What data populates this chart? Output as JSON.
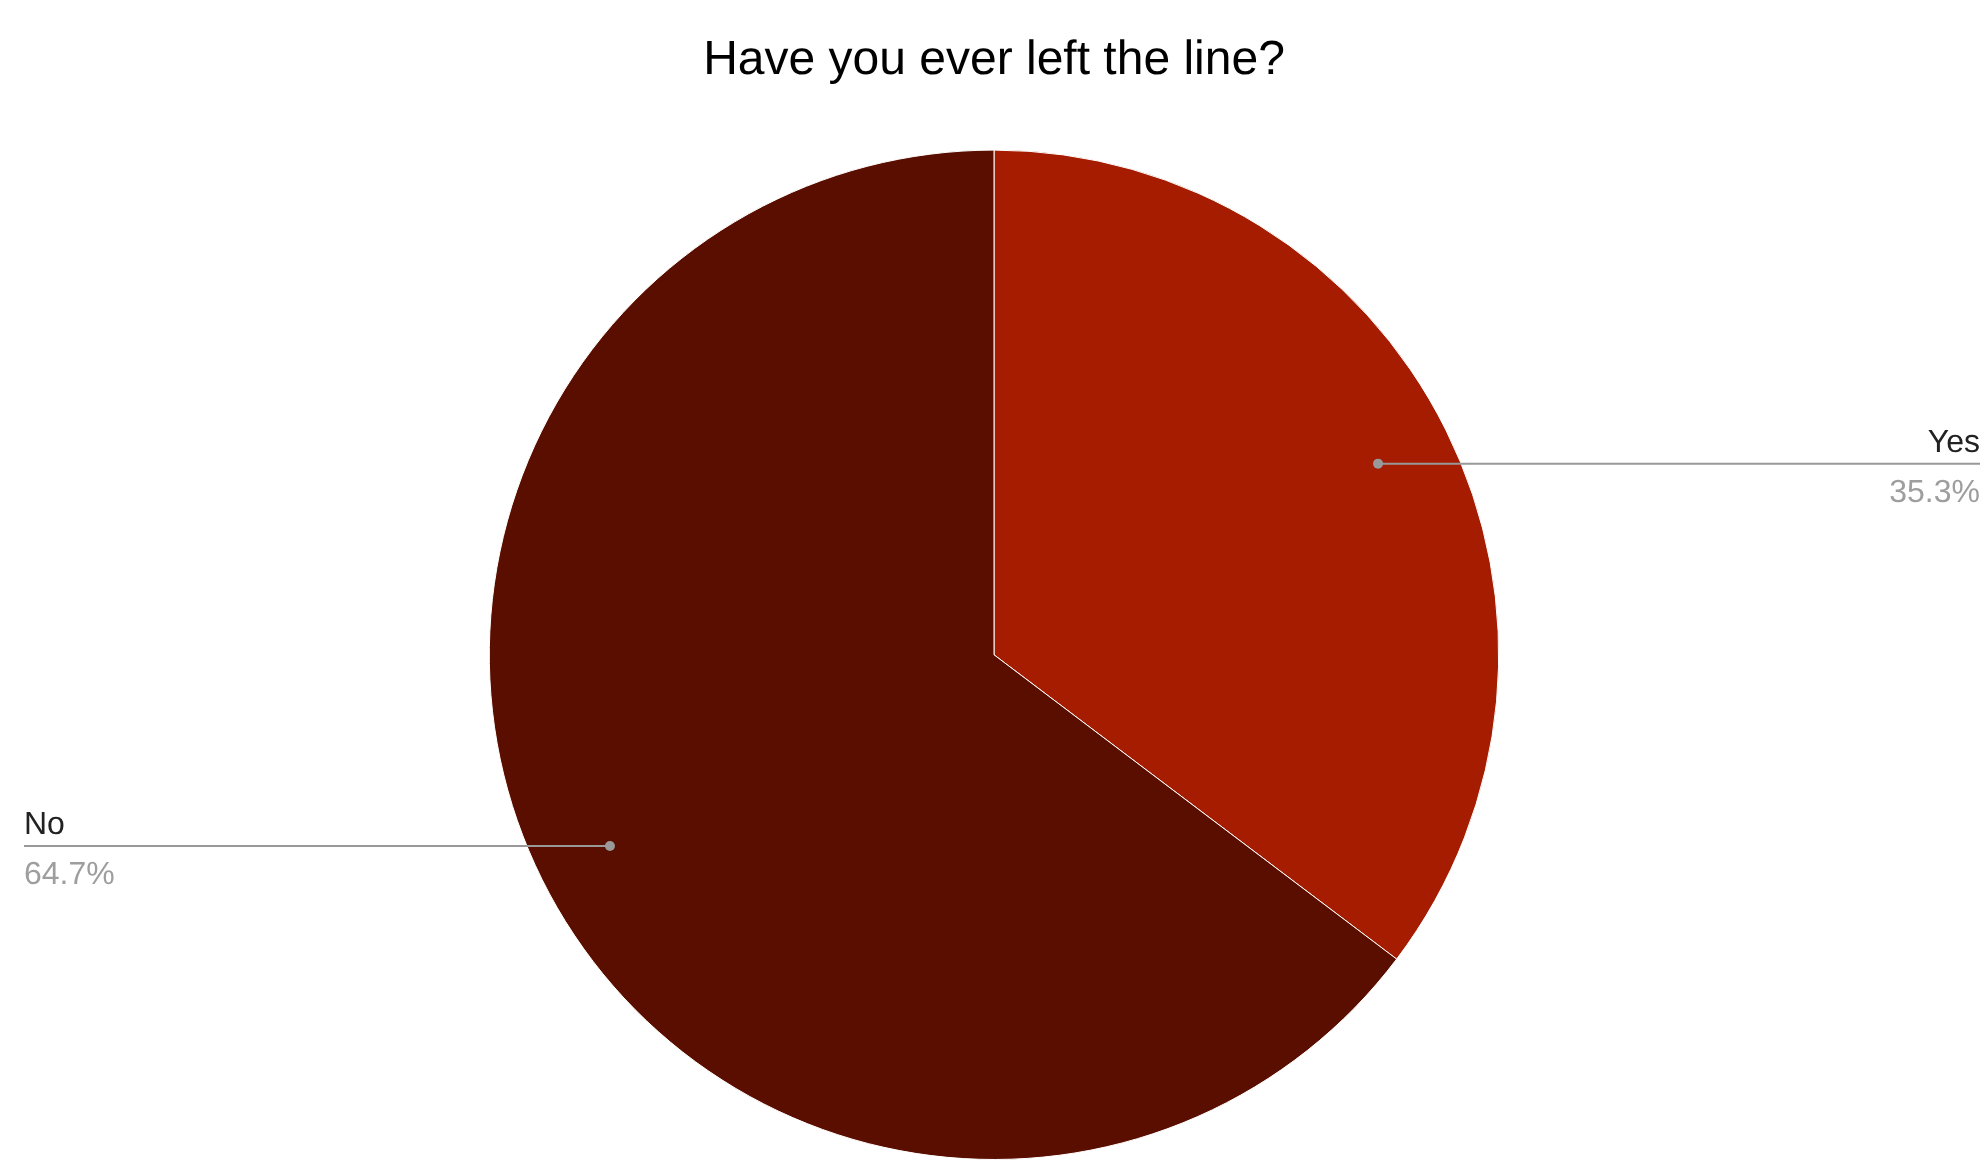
{
  "chart_data": {
    "type": "pie",
    "title": "Have you ever left the line?",
    "categories": [
      "Yes",
      "No"
    ],
    "values": [
      35.3,
      64.7
    ],
    "colors": [
      "#a51c00",
      "#5a0e00"
    ],
    "value_labels": [
      "35.3%",
      "64.7%"
    ],
    "legend": false
  }
}
